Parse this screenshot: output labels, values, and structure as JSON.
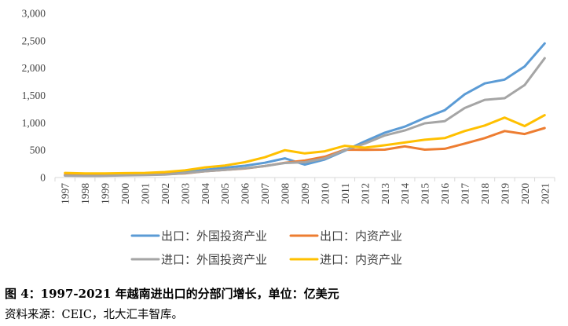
{
  "chart_data": {
    "type": "line",
    "x": [
      "1997",
      "1998",
      "1999",
      "2000",
      "2001",
      "2002",
      "2003",
      "2004",
      "2005",
      "2006",
      "2007",
      "2008",
      "2009",
      "2010",
      "2011",
      "2012",
      "2013",
      "2014",
      "2015",
      "2016",
      "2017",
      "2018",
      "2019",
      "2020",
      "2021"
    ],
    "series": [
      {
        "name": "出口：外国投资产业",
        "color": "#5B9BD5",
        "values": [
          40,
          38,
          40,
          45,
          50,
          62,
          95,
          140,
          180,
          215,
          270,
          350,
          235,
          330,
          490,
          660,
          820,
          930,
          1090,
          1230,
          1520,
          1720,
          1790,
          2030,
          2450
        ]
      },
      {
        "name": "出口：内资产业",
        "color": "#ED7D31",
        "values": [
          50,
          45,
          48,
          55,
          55,
          60,
          75,
          115,
          140,
          165,
          210,
          270,
          310,
          380,
          510,
          505,
          510,
          570,
          510,
          525,
          620,
          720,
          850,
          795,
          905
        ]
      },
      {
        "name": "进口：外国投资产业",
        "color": "#A5A5A5",
        "values": [
          35,
          30,
          32,
          40,
          45,
          55,
          80,
          115,
          140,
          170,
          210,
          265,
          280,
          350,
          500,
          620,
          770,
          860,
          990,
          1030,
          1270,
          1420,
          1450,
          1690,
          2180
        ]
      },
      {
        "name": "进口：内资产业",
        "color": "#FFC000",
        "values": [
          85,
          75,
          75,
          80,
          85,
          100,
          130,
          185,
          220,
          280,
          370,
          500,
          440,
          480,
          580,
          545,
          590,
          640,
          690,
          720,
          850,
          950,
          1095,
          940,
          1140
        ]
      }
    ],
    "ylim": [
      0,
      3000
    ],
    "yticks": [
      0,
      500,
      1000,
      1500,
      2000,
      2500,
      3000
    ],
    "ytick_labels": [
      "0",
      "500",
      "1,000",
      "1,500",
      "2,000",
      "2,500",
      "3,000"
    ],
    "grid": false,
    "legend": "bottom"
  },
  "caption": {
    "title": "图 4：1997-2021 年越南进出口的分部门增长，单位：亿美元",
    "source": "资料来源：CEIC，北大汇丰智库。"
  }
}
